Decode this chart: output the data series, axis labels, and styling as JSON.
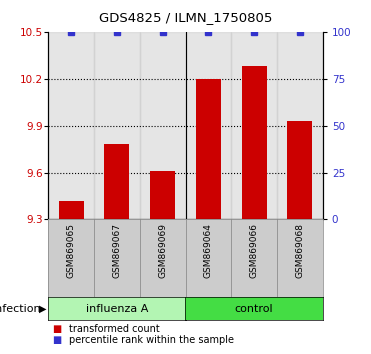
{
  "title": "GDS4825 / ILMN_1750805",
  "categories": [
    "GSM869065",
    "GSM869067",
    "GSM869069",
    "GSM869064",
    "GSM869066",
    "GSM869068"
  ],
  "bar_values": [
    9.42,
    9.78,
    9.61,
    10.2,
    10.28,
    9.93
  ],
  "percentile_values": [
    100,
    100,
    100,
    100,
    100,
    100
  ],
  "bar_color": "#cc0000",
  "percentile_color": "#3333cc",
  "ylim_left": [
    9.3,
    10.5
  ],
  "ylim_right": [
    0,
    100
  ],
  "yticks_left": [
    9.3,
    9.6,
    9.9,
    10.2,
    10.5
  ],
  "yticks_right": [
    0,
    25,
    50,
    75,
    100
  ],
  "influenza_color": "#b3f5b3",
  "control_color": "#44dd44",
  "infection_label": "infection",
  "bar_width": 0.55,
  "tick_label_color_left": "#cc0000",
  "tick_label_color_right": "#3333cc",
  "sample_bg_color": "#cccccc",
  "n_influenza": 3,
  "n_control": 3
}
